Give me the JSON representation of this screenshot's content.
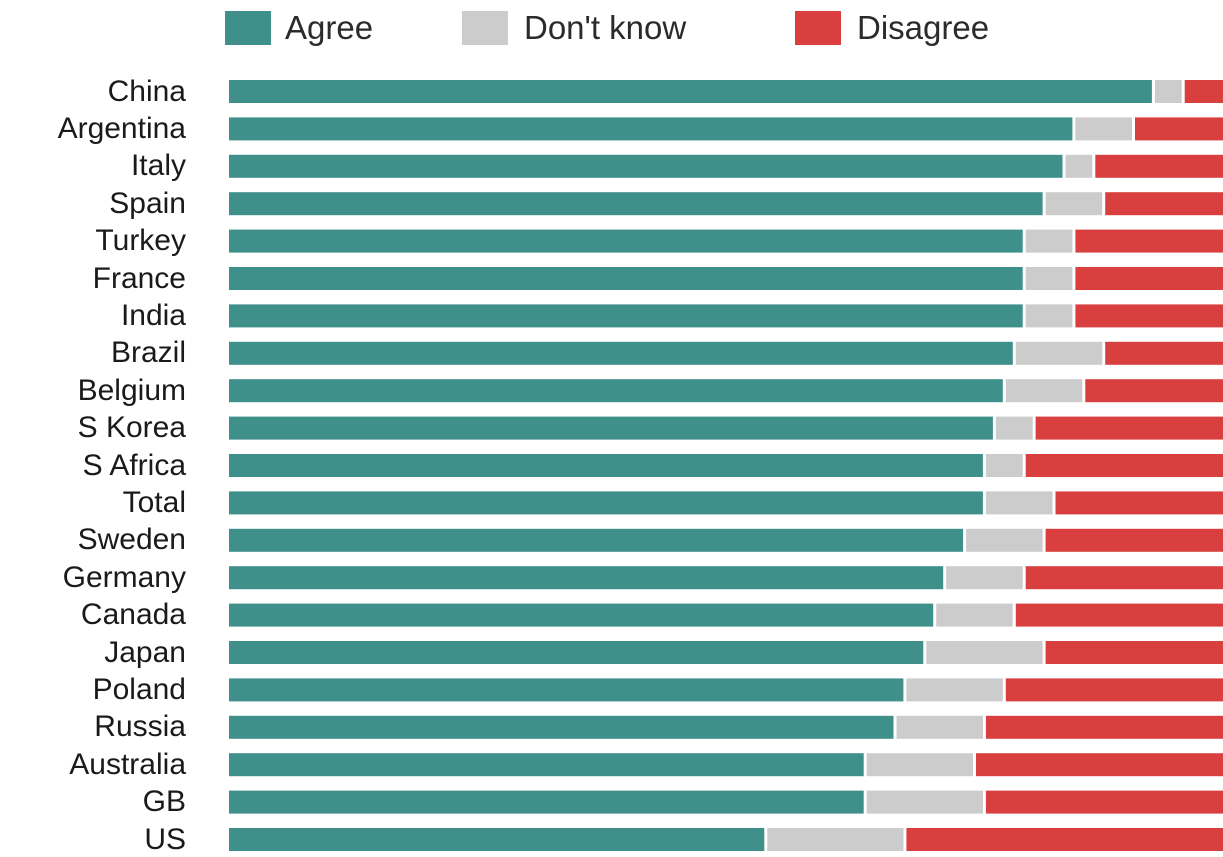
{
  "chart_data": {
    "type": "bar",
    "orientation": "horizontal",
    "stacked": true,
    "normalized": true,
    "legend": {
      "placement": "top",
      "items": [
        {
          "name": "Agree",
          "color": "#3f8f8b"
        },
        {
          "name": "Don't know",
          "color": "#cccccc"
        },
        {
          "name": "Disagree",
          "color": "#d93f3f"
        }
      ]
    },
    "categories": [
      "China",
      "Argentina",
      "Italy",
      "Spain",
      "Turkey",
      "France",
      "India",
      "Brazil",
      "Belgium",
      "S Korea",
      "S Africa",
      "Total",
      "Sweden",
      "Germany",
      "Canada",
      "Japan",
      "Poland",
      "Russia",
      "Australia",
      "GB",
      "US"
    ],
    "series": [
      {
        "name": "Agree",
        "color": "#3f8f8b",
        "values": [
          93,
          85,
          84,
          82,
          80,
          80,
          80,
          79,
          78,
          77,
          76,
          76,
          74,
          72,
          71,
          70,
          68,
          67,
          64,
          64,
          54
        ]
      },
      {
        "name": "Don't know",
        "color": "#cccccc",
        "values": [
          3,
          6,
          3,
          6,
          5,
          5,
          5,
          9,
          8,
          4,
          4,
          7,
          8,
          8,
          8,
          12,
          10,
          9,
          11,
          12,
          14
        ]
      },
      {
        "name": "Disagree",
        "color": "#d93f3f",
        "values": [
          4,
          9,
          13,
          12,
          15,
          15,
          15,
          12,
          14,
          19,
          20,
          17,
          18,
          20,
          21,
          18,
          22,
          24,
          25,
          24,
          32
        ]
      }
    ],
    "xlim": [
      0,
      100
    ],
    "grid": false,
    "title": "",
    "xlabel": "",
    "ylabel": ""
  }
}
